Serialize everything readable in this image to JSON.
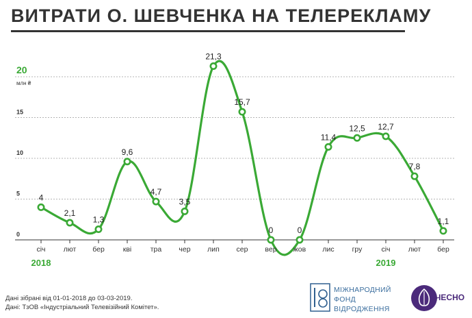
{
  "title": "ВИТРАТИ О. ШЕВЧЕНКА НА ТЕЛЕРЕКЛАМУ",
  "chart_data": {
    "type": "line",
    "ylabel": "млн ₴",
    "ylim": [
      0,
      20
    ],
    "yticks": [
      "0",
      "5",
      "10",
      "15",
      "20"
    ],
    "categories": [
      "січ",
      "лют",
      "бер",
      "кві",
      "тра",
      "чер",
      "лип",
      "сер",
      "вер",
      "жов",
      "лис",
      "гру",
      "січ",
      "лют",
      "бер"
    ],
    "values": [
      4,
      2.1,
      1.3,
      9.6,
      4.7,
      3.5,
      21.3,
      15.7,
      0,
      0,
      11.4,
      12.5,
      12.7,
      7.8,
      1.1
    ],
    "value_labels": [
      "4",
      "2,1",
      "1,3",
      "9,6",
      "4,7",
      "3,5",
      "21,3",
      "15,7",
      "0",
      "0",
      "11,4",
      "12,5",
      "12,7",
      "7,8",
      "1,1"
    ],
    "year_labels": [
      {
        "text": "2018",
        "category_index": 0
      },
      {
        "text": "2019",
        "category_index": 12
      }
    ],
    "grid": "horizontal dashed",
    "line_color": "#3aa935",
    "point_fill": "#ffffff",
    "year_color": "#3aa935"
  },
  "footnote": {
    "line1": "Дані зібрані від 01-01-2018 до 03-03-2019.",
    "line2": "Дані: ТзОВ «Індустріальний Телевізійний Комітет»."
  },
  "logos": {
    "irf": {
      "line1": "МІЖНАРОДНИЙ",
      "line2": "ФОНД",
      "line3": "ВІДРОДЖЕННЯ"
    },
    "chesno": "ЧЕСНО"
  }
}
